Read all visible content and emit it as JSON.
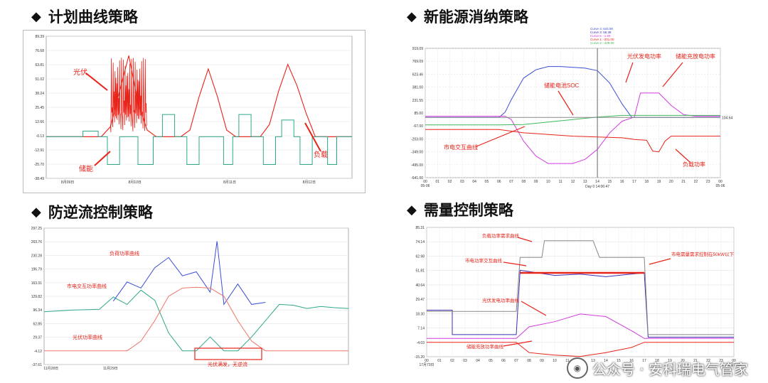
{
  "panels": {
    "p1": {
      "title": "计划曲线策略"
    },
    "p2": {
      "title": "新能源消纳策略"
    },
    "p3": {
      "title": "防逆流控制策略"
    },
    "p4": {
      "title": "需量控制策略"
    }
  },
  "watermark": {
    "text": "公众号 · 安科瑞电气管家"
  },
  "colors": {
    "red": "#e8231a",
    "teal": "#2fa88a",
    "blue": "#3b4fd6",
    "magenta": "#d43ce0",
    "green": "#40b85a",
    "gray": "#888888",
    "purple": "#3a2fb0"
  },
  "chart_data": [
    {
      "type": "line",
      "yticks": [
        "89.39",
        "76.68",
        "63.81",
        "51.02",
        "38.24",
        "25.45",
        "12.66",
        "-0.13",
        "-12.91",
        "-25.70",
        "-38.49"
      ],
      "xticks": [
        "8月09日",
        "8月10日",
        "8月11日",
        "8月12日"
      ],
      "ylim": [
        -38.49,
        89.39
      ],
      "annotations": [
        "光伏",
        "储能",
        "负载"
      ],
      "series": [
        {
          "color": "red",
          "points": [
            [
              0,
              -1
            ],
            [
              0.9,
              -1
            ],
            [
              1.05,
              8
            ],
            [
              1.2,
              40
            ],
            [
              1.35,
              72
            ],
            [
              1.5,
              30
            ],
            [
              1.65,
              5
            ],
            [
              1.8,
              -1
            ],
            [
              2.2,
              -1
            ],
            [
              2.35,
              5
            ],
            [
              2.5,
              35
            ],
            [
              2.65,
              60
            ],
            [
              2.8,
              35
            ],
            [
              2.95,
              5
            ],
            [
              3.1,
              -1
            ],
            [
              3.5,
              -1
            ],
            [
              3.65,
              10
            ],
            [
              3.8,
              40
            ],
            [
              3.95,
              64
            ],
            [
              4.1,
              45
            ],
            [
              4.25,
              20
            ],
            [
              4.4,
              -1
            ],
            [
              5,
              -1
            ]
          ]
        },
        {
          "color": "teal",
          "points": [
            [
              0,
              -1
            ],
            [
              0.6,
              -1
            ],
            [
              0.6,
              4
            ],
            [
              0.85,
              4
            ],
            [
              0.85,
              -1
            ],
            [
              1.0,
              -1
            ],
            [
              1.0,
              -26
            ],
            [
              1.2,
              -26
            ],
            [
              1.2,
              -1
            ],
            [
              1.5,
              -1
            ],
            [
              1.5,
              -26
            ],
            [
              1.75,
              -26
            ],
            [
              1.75,
              -1
            ],
            [
              1.9,
              -1
            ],
            [
              1.9,
              19
            ],
            [
              2.1,
              19
            ],
            [
              2.1,
              -1
            ],
            [
              2.3,
              -1
            ],
            [
              2.3,
              -26
            ],
            [
              2.5,
              -26
            ],
            [
              2.5,
              -1
            ],
            [
              2.9,
              -1
            ],
            [
              2.9,
              -26
            ],
            [
              3.05,
              -26
            ],
            [
              3.05,
              -1
            ],
            [
              3.15,
              -1
            ],
            [
              3.15,
              19
            ],
            [
              3.35,
              19
            ],
            [
              3.35,
              -1
            ],
            [
              3.55,
              -1
            ],
            [
              3.55,
              -26
            ],
            [
              3.75,
              -26
            ],
            [
              3.75,
              -1
            ],
            [
              3.85,
              -1
            ],
            [
              3.85,
              14
            ],
            [
              4.05,
              14
            ],
            [
              4.05,
              -1
            ],
            [
              4.15,
              -1
            ],
            [
              4.15,
              -26
            ],
            [
              4.35,
              -26
            ],
            [
              4.35,
              -1
            ],
            [
              4.6,
              -1
            ],
            [
              4.6,
              -26
            ],
            [
              4.75,
              -26
            ],
            [
              4.75,
              -1
            ],
            [
              5,
              -1
            ]
          ]
        }
      ]
    },
    {
      "type": "line",
      "yticks": [
        "919.09",
        "769.09",
        "623.46",
        "381.00",
        "231.55",
        "85.00",
        "-67.00",
        "-203.00",
        "-349.00",
        "-495.00",
        "-641.00"
      ],
      "xticks": [
        "00",
        "01",
        "02",
        "03",
        "04",
        "05",
        "06",
        "07",
        "08",
        "09",
        "10",
        "11",
        "12",
        "13",
        "14",
        "15",
        "16",
        "17",
        "18",
        "19",
        "20",
        "21",
        "22",
        "23",
        "00"
      ],
      "xlabel_left": "05-06",
      "xlabel_right": "05-06",
      "xlabel_mid": "Day 0 14:06:47",
      "right_label": "104.64",
      "ylim": [
        -641,
        919.09
      ],
      "legend": [
        "Curve 4: 644.90",
        "Curve 3: 56.38",
        "Curve 5: -1.69",
        "Curve 1: -201.00",
        "Curve 2: -429.00"
      ],
      "annotations": [
        "光伏发电功率",
        "储能充放电功率",
        "储能电池SOC",
        "市电交互曲线",
        "负载功率"
      ],
      "series": [
        {
          "color": "blue",
          "points": [
            [
              0,
              85
            ],
            [
              6,
              85
            ],
            [
              6.5,
              150
            ],
            [
              7,
              300
            ],
            [
              8,
              560
            ],
            [
              9,
              660
            ],
            [
              10,
              700
            ],
            [
              11,
              700
            ],
            [
              12,
              690
            ],
            [
              13,
              680
            ],
            [
              14,
              650
            ],
            [
              15,
              500
            ],
            [
              16,
              250
            ],
            [
              16.8,
              85
            ],
            [
              24,
              85
            ]
          ]
        },
        {
          "color": "magenta",
          "points": [
            [
              0,
              100
            ],
            [
              6.5,
              100
            ],
            [
              7,
              60
            ],
            [
              8,
              -200
            ],
            [
              9,
              -380
            ],
            [
              10,
              -470
            ],
            [
              11,
              -470
            ],
            [
              12,
              -470
            ],
            [
              13,
              -420
            ],
            [
              14,
              -300
            ],
            [
              15,
              -100
            ],
            [
              16,
              40
            ],
            [
              17,
              90
            ],
            [
              17.5,
              380
            ],
            [
              19,
              380
            ],
            [
              20,
              230
            ],
            [
              21,
              120
            ],
            [
              22,
              100
            ],
            [
              24,
              100
            ]
          ]
        },
        {
          "color": "green",
          "points": [
            [
              0,
              -5
            ],
            [
              6,
              -5
            ],
            [
              8,
              0
            ],
            [
              10,
              30
            ],
            [
              12,
              60
            ],
            [
              14,
              90
            ],
            [
              16,
              110
            ],
            [
              24,
              110
            ]
          ]
        },
        {
          "color": "red",
          "points": [
            [
              0,
              -60
            ],
            [
              6,
              -60
            ],
            [
              8,
              -100
            ],
            [
              10,
              -120
            ],
            [
              12,
              -140
            ],
            [
              14,
              -150
            ],
            [
              16,
              -160
            ],
            [
              17,
              -180
            ],
            [
              18,
              -190
            ],
            [
              18.5,
              -320
            ],
            [
              19,
              -330
            ],
            [
              19.5,
              -200
            ],
            [
              20,
              -140
            ],
            [
              24,
              -140
            ]
          ]
        },
        {
          "color": "gray",
          "points": [
            [
              0,
              85
            ],
            [
              24,
              85
            ]
          ]
        }
      ]
    },
    {
      "type": "line",
      "yticks": [
        "297.25",
        "263.76",
        "230.28",
        "196.79",
        "163.31",
        "129.82",
        "96.34",
        "62.85",
        "29.37",
        "-4.12",
        "-37.61"
      ],
      "xticks": [
        "11月28日",
        "11月29日"
      ],
      "ylim": [
        -37.61,
        297.25
      ],
      "annotations": [
        "负荷功率曲线",
        "市电交互功率曲线",
        "光伏功率曲线",
        "光伏满发，无逆流"
      ],
      "series": [
        {
          "color": "teal",
          "points": [
            [
              0,
              92
            ],
            [
              2,
              96
            ],
            [
              4,
              98
            ],
            [
              5,
              128
            ],
            [
              6,
              110
            ],
            [
              7,
              145
            ],
            [
              8,
              120
            ],
            [
              9,
              40
            ],
            [
              10,
              -4
            ],
            [
              11,
              -4
            ],
            [
              12,
              30
            ],
            [
              13,
              -4
            ],
            [
              14,
              -4
            ],
            [
              15,
              30
            ],
            [
              16,
              70
            ],
            [
              17,
              110
            ],
            [
              18,
              108
            ],
            [
              19,
              100
            ],
            [
              20,
              105
            ],
            [
              21,
              102
            ],
            [
              22,
              100
            ]
          ]
        },
        {
          "color": "blue",
          "points": [
            [
              5,
              118
            ],
            [
              6,
              165
            ],
            [
              7,
              150
            ],
            [
              8,
              200
            ],
            [
              9,
              225
            ],
            [
              10,
              180
            ],
            [
              11,
              190
            ],
            [
              12,
              140
            ],
            [
              12.5,
              265
            ],
            [
              13,
              110
            ],
            [
              14,
              160
            ],
            [
              15,
              110
            ],
            [
              16,
              115
            ]
          ]
        },
        {
          "color": "salmon",
          "points": [
            [
              0,
              -4
            ],
            [
              6,
              -4
            ],
            [
              7,
              20
            ],
            [
              8,
              70
            ],
            [
              9,
              130
            ],
            [
              10,
              150
            ],
            [
              11,
              152
            ],
            [
              12,
              150
            ],
            [
              13,
              130
            ],
            [
              14,
              70
            ],
            [
              15,
              20
            ],
            [
              16,
              -4
            ],
            [
              22,
              -4
            ]
          ]
        }
      ]
    },
    {
      "type": "line",
      "yticks": [
        "85.31",
        "74.14",
        "62.98",
        "51.81",
        "40.64",
        "29.47",
        "18.30",
        "7.14",
        "-4.03",
        "-15.20"
      ],
      "xticks": [
        "00",
        "01",
        "02",
        "03",
        "04",
        "05",
        "06",
        "07",
        "08",
        "09",
        "10",
        "11",
        "12",
        "13",
        "14",
        "15",
        "16",
        "17",
        "18",
        "19",
        "20",
        "21",
        "22",
        "23",
        "00"
      ],
      "xlabel_left": "17月73日",
      "xlabel_right": "17月74日",
      "ylim": [
        -15.2,
        85.31
      ],
      "annotations": [
        "负载功率需求曲线",
        "市电功率交互曲线",
        "光伏发电功率曲线",
        "储能充放功率曲线",
        "市电需量需求控制在50kW以下"
      ],
      "series": [
        {
          "color": "purple",
          "points": [
            [
              0,
              21
            ],
            [
              2,
              21
            ],
            [
              2,
              2
            ],
            [
              7,
              2
            ],
            [
              7.3,
              52
            ],
            [
              10,
              48
            ],
            [
              12,
              49
            ],
            [
              14,
              47
            ],
            [
              17,
              50
            ],
            [
              17.3,
              0
            ],
            [
              24,
              0
            ]
          ]
        },
        {
          "color": "gray",
          "points": [
            [
              0,
              20
            ],
            [
              7,
              20
            ],
            [
              7.3,
              62
            ],
            [
              9,
              62
            ],
            [
              9.2,
              75
            ],
            [
              13,
              75
            ],
            [
              13.5,
              62
            ],
            [
              17,
              62
            ],
            [
              17.3,
              2
            ],
            [
              24,
              2
            ]
          ]
        },
        {
          "color": "magenta",
          "points": [
            [
              0,
              -1
            ],
            [
              7,
              -1
            ],
            [
              8,
              8
            ],
            [
              10,
              12
            ],
            [
              12,
              18
            ],
            [
              14,
              16
            ],
            [
              16,
              5
            ],
            [
              17,
              -1
            ],
            [
              24,
              -1
            ]
          ]
        },
        {
          "color": "red",
          "points": [
            [
              0,
              -4
            ],
            [
              7,
              -4
            ],
            [
              8,
              -12
            ],
            [
              10,
              -14
            ],
            [
              12,
              -15
            ],
            [
              14,
              -12
            ],
            [
              16,
              -8
            ],
            [
              17,
              -4
            ],
            [
              24,
              -4
            ]
          ]
        }
      ],
      "control_line_value": 50
    }
  ]
}
